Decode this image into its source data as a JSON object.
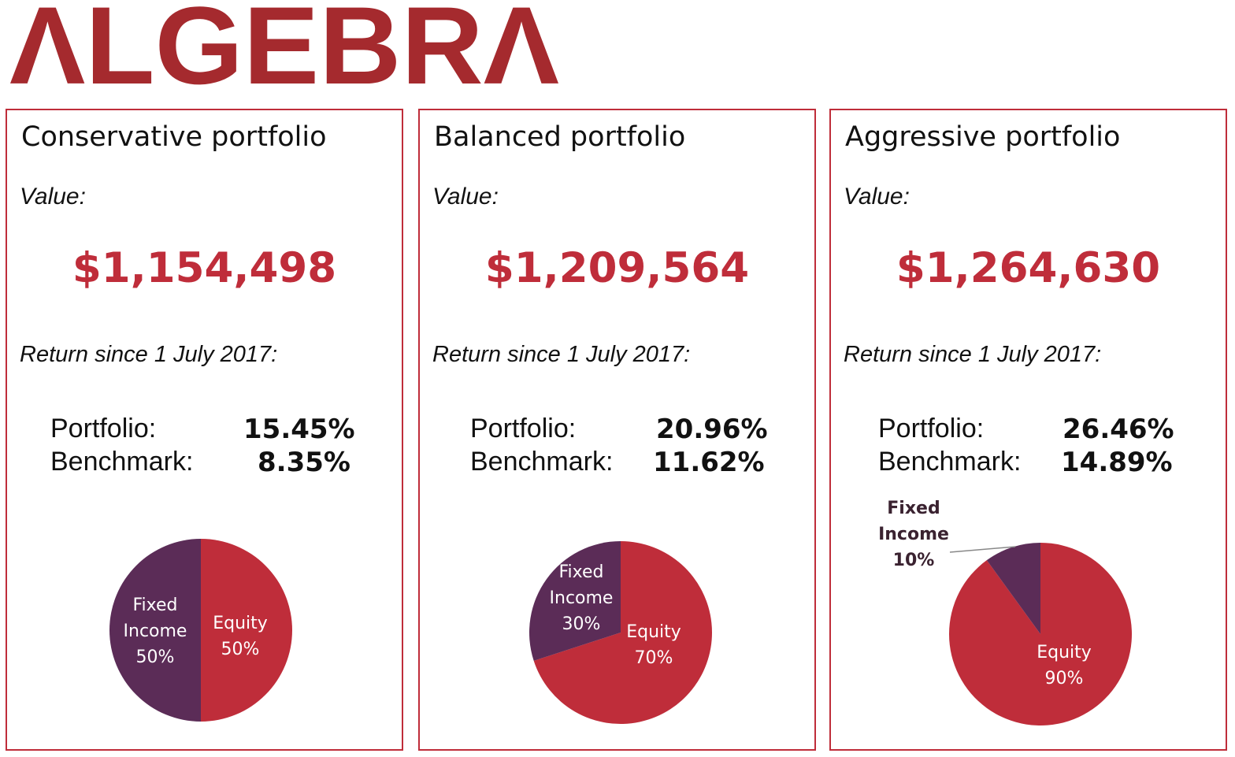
{
  "logo": {
    "text": "ALGEBRA",
    "color": "#A52A2E"
  },
  "colors": {
    "accent": "#BF2D3A",
    "equity": "#BF2D3A",
    "fixed_income": "#5B2C57",
    "border": "#BF2D3A"
  },
  "portfolios": [
    {
      "title": "Conservative portfolio",
      "value_label": "Value:",
      "value": "$1,154,498",
      "return_label": "Return since 1 July 2017:",
      "portfolio_label": "Portfolio:",
      "portfolio_return": "15.45%",
      "benchmark_label": "Benchmark:",
      "benchmark_return": "8.35%"
    },
    {
      "title": "Balanced portfolio",
      "value_label": "Value:",
      "value": "$1,209,564",
      "return_label": "Return since 1 July 2017:",
      "portfolio_label": "Portfolio:",
      "portfolio_return": "20.96%",
      "benchmark_label": "Benchmark:",
      "benchmark_return": "11.62%"
    },
    {
      "title": "Aggressive portfolio",
      "value_label": "Value:",
      "value": "$1,264,630",
      "return_label": "Return since 1 July 2017:",
      "portfolio_label": "Portfolio:",
      "portfolio_return": "26.46%",
      "benchmark_label": "Benchmark:",
      "benchmark_return": "14.89%"
    }
  ],
  "chart_data": [
    {
      "type": "pie",
      "slices": [
        {
          "label": "Equity",
          "value": 50,
          "text": "50%"
        },
        {
          "label": "Fixed Income",
          "value": 50,
          "text": "50%"
        }
      ]
    },
    {
      "type": "pie",
      "slices": [
        {
          "label": "Equity",
          "value": 70,
          "text": "70%"
        },
        {
          "label": "Fixed Income",
          "value": 30,
          "text": "30%"
        }
      ]
    },
    {
      "type": "pie",
      "slices": [
        {
          "label": "Equity",
          "value": 90,
          "text": "90%"
        },
        {
          "label": "Fixed Income",
          "value": 10,
          "text": "10%"
        }
      ]
    }
  ]
}
